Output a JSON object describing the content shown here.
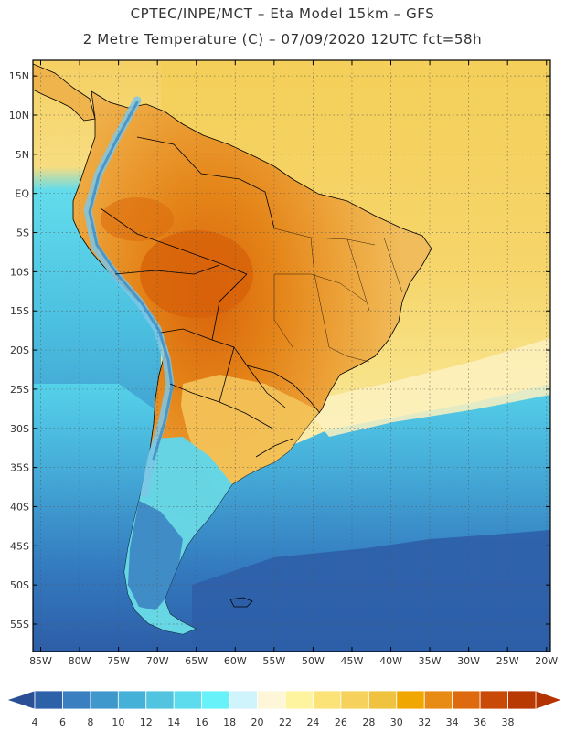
{
  "header": {
    "line1": "CPTEC/INPE/MCT –   Eta Model 15km – GFS",
    "line2": "2 Metre Temperature (C) – 07/09/2020 12UTC fct=58h"
  },
  "map": {
    "region": "South America",
    "lat_labels": [
      "15N",
      "10N",
      "5N",
      "EQ",
      "5S",
      "10S",
      "15S",
      "20S",
      "25S",
      "30S",
      "35S",
      "40S",
      "45S",
      "50S",
      "55S"
    ],
    "lon_labels": [
      "85W",
      "80W",
      "75W",
      "70W",
      "65W",
      "60W",
      "55W",
      "50W",
      "45W",
      "40W",
      "35W",
      "30W",
      "25W",
      "20W"
    ]
  },
  "colorbar": {
    "values": [
      "4",
      "6",
      "8",
      "10",
      "12",
      "14",
      "16",
      "18",
      "20",
      "22",
      "24",
      "26",
      "28",
      "30",
      "32",
      "34",
      "36",
      "38"
    ],
    "colors": [
      "#2e62a8",
      "#3a80c0",
      "#3f98cc",
      "#45b0d8",
      "#52c4e0",
      "#5cdcec",
      "#66f2f8",
      "#d0f4fb",
      "#fdf6d8",
      "#fef39e",
      "#fbe378",
      "#f6d25c",
      "#efc33f",
      "#f0a800",
      "#e78b14",
      "#df6a0e",
      "#c94a06",
      "#b83a02"
    ],
    "under_color": "#2a4f95",
    "over_color": "#b53300"
  },
  "palette": {
    "ocean_cold": "#2f5ea8",
    "ocean_cool": "#47a9d4",
    "ocean_mid": "#5bd8ec",
    "land_hot": "#e07a10",
    "land_warm": "#eda33a",
    "land_mild": "#f3c86a",
    "mountain": "#7ec8e6",
    "frame": "#000000"
  }
}
